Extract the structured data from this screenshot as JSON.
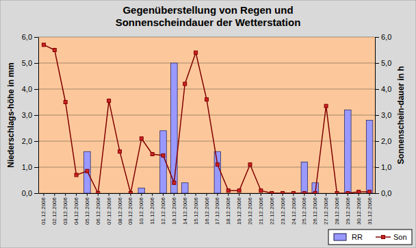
{
  "chart_data": {
    "type": "bar",
    "title": "Gegenüberstellung von Regen und Sonnenscheindauer der Wetterstation",
    "y_label": "Niederschlags-höhe in mm",
    "y2_label": "Sonnenschein-dauer in h",
    "categories": [
      "01.12.2006",
      "02.12.2006",
      "03.12.2006",
      "04.12.2006",
      "05.12.2006",
      "06.12.2006",
      "07.12.2006",
      "08.12.2006",
      "09.12.2006",
      "10.12.2006",
      "11.12.2006",
      "12.12.2006",
      "13.12.2006",
      "14.12.2006",
      "15.12.2006",
      "16.12.2006",
      "17.12.2006",
      "18.12.2006",
      "19.12.2006",
      "20.12.2006",
      "21.12.2006",
      "22.12.2006",
      "23.12.2006",
      "24.12.2006",
      "25.12.2006",
      "26.12.2006",
      "27.12.2006",
      "28.12.2006",
      "29.12.2006",
      "30.12.2006",
      "31.12.2006"
    ],
    "series": [
      {
        "name": "RR",
        "type": "bar",
        "color": "#9999ff",
        "axis": "y",
        "values": [
          0,
          0,
          0,
          0,
          1.6,
          0,
          0,
          0,
          0,
          0.2,
          0,
          2.4,
          5.0,
          0.4,
          0,
          0,
          1.6,
          0,
          0,
          0,
          0,
          0,
          0,
          0,
          1.2,
          0.4,
          0,
          0,
          3.2,
          0,
          2.8
        ]
      },
      {
        "name": "Son",
        "type": "line",
        "color": "#800000",
        "marker": "square",
        "axis": "y2",
        "values": [
          5.7,
          5.5,
          3.5,
          0.7,
          0.85,
          0,
          3.55,
          1.6,
          0,
          2.1,
          1.5,
          1.45,
          0.4,
          4.2,
          5.4,
          3.6,
          1.1,
          0.1,
          0.1,
          1.1,
          0.1,
          0,
          0,
          0,
          0,
          0,
          3.35,
          0,
          0,
          0.05,
          0.05
        ]
      }
    ],
    "ylim": [
      0,
      6
    ],
    "yticks": [
      {
        "value": 0,
        "label": "0,0"
      },
      {
        "value": 1,
        "label": "1,0"
      },
      {
        "value": 2,
        "label": "2,0"
      },
      {
        "value": 3,
        "label": "3,0"
      },
      {
        "value": 4,
        "label": "4,0"
      },
      {
        "value": 5,
        "label": "5,0"
      },
      {
        "value": 6,
        "label": "6,0"
      }
    ],
    "y2lim": [
      0,
      6
    ],
    "y2ticks": [
      {
        "value": 0,
        "label": "0,0"
      },
      {
        "value": 1,
        "label": "1,0"
      },
      {
        "value": 2,
        "label": "2,0"
      },
      {
        "value": 3,
        "label": "3,0"
      },
      {
        "value": 4,
        "label": "4,0"
      },
      {
        "value": 5,
        "label": "5,0"
      },
      {
        "value": 6,
        "label": "6,0"
      }
    ],
    "grid": true,
    "legend": "bottom-right"
  }
}
